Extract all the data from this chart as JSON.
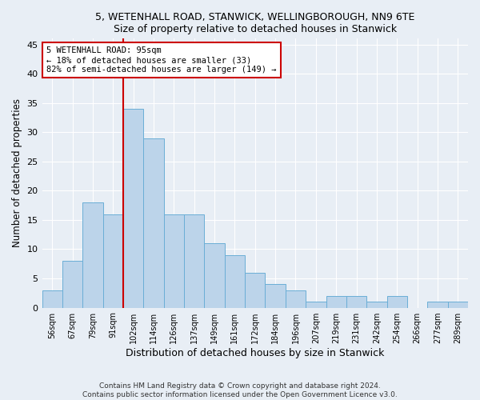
{
  "title1": "5, WETENHALL ROAD, STANWICK, WELLINGBOROUGH, NN9 6TE",
  "title2": "Size of property relative to detached houses in Stanwick",
  "xlabel": "Distribution of detached houses by size in Stanwick",
  "ylabel": "Number of detached properties",
  "bar_labels": [
    "56sqm",
    "67sqm",
    "79sqm",
    "91sqm",
    "102sqm",
    "114sqm",
    "126sqm",
    "137sqm",
    "149sqm",
    "161sqm",
    "172sqm",
    "184sqm",
    "196sqm",
    "207sqm",
    "219sqm",
    "231sqm",
    "242sqm",
    "254sqm",
    "266sqm",
    "277sqm",
    "289sqm"
  ],
  "bar_values": [
    3,
    8,
    18,
    16,
    34,
    29,
    16,
    16,
    11,
    9,
    6,
    4,
    3,
    1,
    2,
    2,
    1,
    2,
    0,
    1,
    1
  ],
  "bar_color": "#bcd4ea",
  "bar_edgecolor": "#6aaed6",
  "vline_color": "#cc0000",
  "annotation_text": "5 WETENHALL ROAD: 95sqm\n← 18% of detached houses are smaller (33)\n82% of semi-detached houses are larger (149) →",
  "annotation_box_color": "#ffffff",
  "annotation_box_edgecolor": "#cc0000",
  "ylim": [
    0,
    46
  ],
  "yticks": [
    0,
    5,
    10,
    15,
    20,
    25,
    30,
    35,
    40,
    45
  ],
  "footer1": "Contains HM Land Registry data © Crown copyright and database right 2024.",
  "footer2": "Contains public sector information licensed under the Open Government Licence v3.0.",
  "bg_color": "#e8eef5",
  "plot_bg_color": "#e8eef5"
}
